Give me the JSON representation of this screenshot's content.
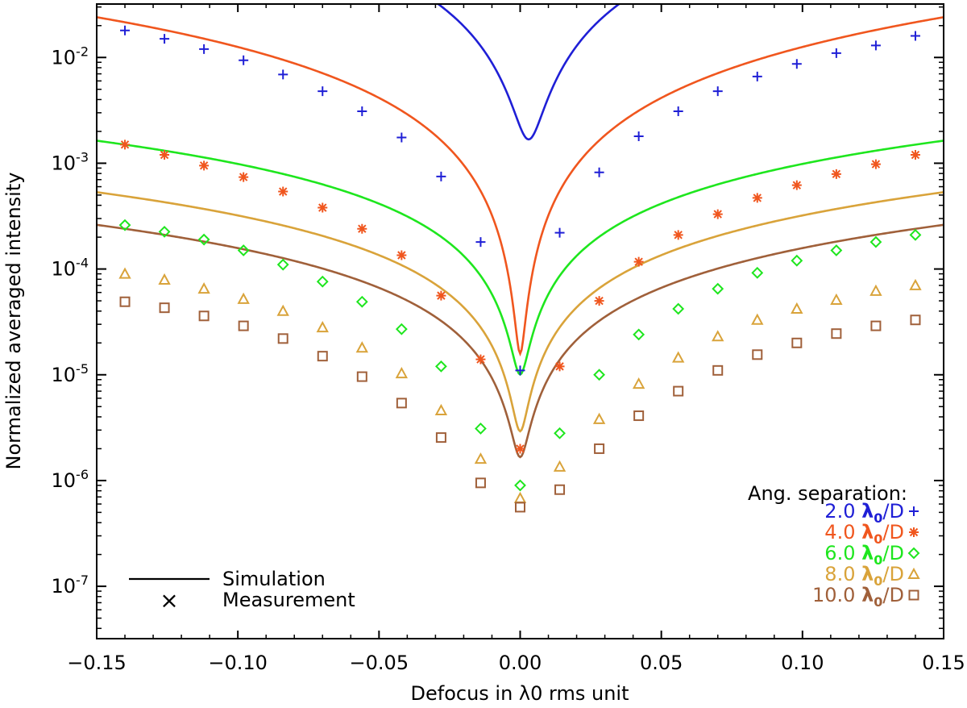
{
  "chart_data": {
    "type": "line",
    "title": "",
    "xlabel": "Defocus in λ0 rms unit",
    "ylabel": "Normalized averaged intensity",
    "xlim": [
      -0.15,
      0.15
    ],
    "ylim": [
      3.2e-08,
      0.032
    ],
    "yscale": "log",
    "x_ticks": [
      -0.15,
      -0.1,
      -0.05,
      0.0,
      0.05,
      0.1,
      0.15
    ],
    "x_tick_labels": [
      "−0.15",
      "−0.10",
      "−0.05",
      "0.00",
      "0.05",
      "0.10",
      "0.15"
    ],
    "y_ticks": [
      {
        "value": 0.01,
        "mantissa": "10",
        "exponent": "-2"
      },
      {
        "value": 0.001,
        "mantissa": "10",
        "exponent": "-3"
      },
      {
        "value": 0.0001,
        "mantissa": "10",
        "exponent": "-4"
      },
      {
        "value": 1e-05,
        "mantissa": "10",
        "exponent": "-5"
      },
      {
        "value": 1e-06,
        "mantissa": "10",
        "exponent": "-6"
      },
      {
        "value": 1e-07,
        "mantissa": "10",
        "exponent": "-7"
      }
    ],
    "measurement_x": [
      -0.14,
      -0.126,
      -0.112,
      -0.098,
      -0.084,
      -0.07,
      -0.056,
      -0.042,
      -0.028,
      -0.014,
      0.0,
      0.014,
      0.028,
      0.042,
      0.056,
      0.07,
      0.084,
      0.098,
      0.112,
      0.126,
      0.14
    ],
    "series": [
      {
        "name": "2.0 λ0/D",
        "separation": "2.0",
        "color": "#1f1fd6",
        "marker": "plus",
        "simulation": {
          "amplitude": 5.5,
          "x0": 0.003,
          "floor": 1.9e-05,
          "width": 0.0045,
          "power": 1.5
        },
        "measurements": [
          0.018,
          0.015,
          0.012,
          0.0094,
          0.0069,
          0.0048,
          0.0031,
          0.00175,
          0.00075,
          0.00018,
          1.1e-05,
          0.00022,
          0.00082,
          0.0018,
          0.0031,
          0.0048,
          0.0066,
          0.0087,
          0.011,
          0.013,
          0.016
        ]
      },
      {
        "name": "4.0 λ0/D",
        "separation": "4.0",
        "color": "#f0561e",
        "marker": "asterisk",
        "simulation": {
          "amplitude": 0.5,
          "x0": 0.0,
          "floor": 7e-07,
          "width": 0.0015,
          "power": 1.6
        },
        "measurements": [
          0.0015,
          0.0012,
          0.00095,
          0.00074,
          0.00054,
          0.00038,
          0.00024,
          0.000135,
          5.6e-05,
          1.4e-05,
          2e-06,
          1.2e-05,
          5e-05,
          0.000117,
          0.00021,
          0.00033,
          0.00047,
          0.00062,
          0.00079,
          0.00098,
          0.0012
        ]
      },
      {
        "name": "6.0 λ0/D",
        "separation": "6.0",
        "color": "#1ee61e",
        "marker": "diamond",
        "simulation": {
          "amplitude": 0.0175,
          "x0": 0.0,
          "floor": 2.7e-07,
          "width": 0.0025,
          "power": 1.25
        },
        "measurements": [
          0.00026,
          0.000225,
          0.00019,
          0.00015,
          0.00011,
          7.6e-05,
          4.9e-05,
          2.7e-05,
          1.2e-05,
          3.1e-06,
          9e-07,
          2.8e-06,
          1e-05,
          2.4e-05,
          4.2e-05,
          6.5e-05,
          9.2e-05,
          0.00012,
          0.00015,
          0.00018,
          0.00021
        ]
      },
      {
        "name": "8.0 λ0/D",
        "separation": "8.0",
        "color": "#d9a33a",
        "marker": "triangle",
        "simulation": {
          "amplitude": 0.0057,
          "x0": 0.0,
          "floor": 2.1e-07,
          "width": 0.0022,
          "power": 1.25
        },
        "measurements": [
          9e-05,
          7.9e-05,
          6.5e-05,
          5.2e-05,
          4e-05,
          2.8e-05,
          1.8e-05,
          1.03e-05,
          4.6e-06,
          1.6e-06,
          6.8e-07,
          1.35e-06,
          3.8e-06,
          8.2e-06,
          1.45e-05,
          2.3e-05,
          3.3e-05,
          4.2e-05,
          5.1e-05,
          6.2e-05,
          7e-05
        ]
      },
      {
        "name": "10.0 λ0/D",
        "separation": "10.0",
        "color": "#a0603a",
        "marker": "square",
        "simulation": {
          "amplitude": 0.0028,
          "x0": 0.0,
          "floor": 1e-07,
          "width": 0.0025,
          "power": 1.25
        },
        "measurements": [
          4.9e-05,
          4.3e-05,
          3.6e-05,
          2.9e-05,
          2.2e-05,
          1.5e-05,
          9.6e-06,
          5.4e-06,
          2.55e-06,
          9.5e-07,
          5.6e-07,
          8.2e-07,
          2e-06,
          4.1e-06,
          7e-06,
          1.1e-05,
          1.55e-05,
          2e-05,
          2.45e-05,
          2.9e-05,
          3.3e-05
        ]
      }
    ],
    "legend": {
      "title": "Ang. separation:",
      "unit_lambda": "λ",
      "unit_subscript": "0",
      "unit_rest": "/D",
      "line_label": "Simulation",
      "marker_label": "Measurement",
      "marker_symbol": "×",
      "position": "bottom-right"
    }
  }
}
